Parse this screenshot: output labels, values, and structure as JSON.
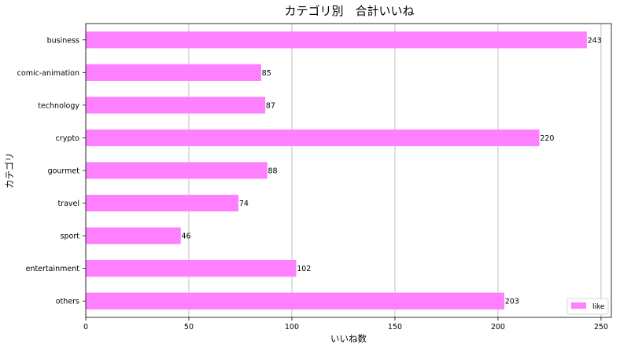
{
  "chart_data": {
    "type": "bar",
    "orientation": "horizontal",
    "title": "カテゴリ別　合計いいね",
    "xlabel": "いいね数",
    "ylabel": "カテゴリ",
    "categories": [
      "business",
      "comic-animation",
      "technology",
      "crypto",
      "gourmet",
      "travel",
      "sport",
      "entertainment",
      "others"
    ],
    "series": [
      {
        "name": "like",
        "values": [
          243,
          85,
          87,
          220,
          88,
          74,
          46,
          102,
          203
        ]
      }
    ],
    "xlim": [
      0,
      255
    ],
    "xticks": [
      0,
      50,
      100,
      150,
      200,
      250
    ],
    "grid": "vertical",
    "legend": "bottom-right",
    "colors": {
      "bar": "#ff80ff",
      "bar_edge": "#ff80ff",
      "grid": "#b0b0b0"
    }
  }
}
